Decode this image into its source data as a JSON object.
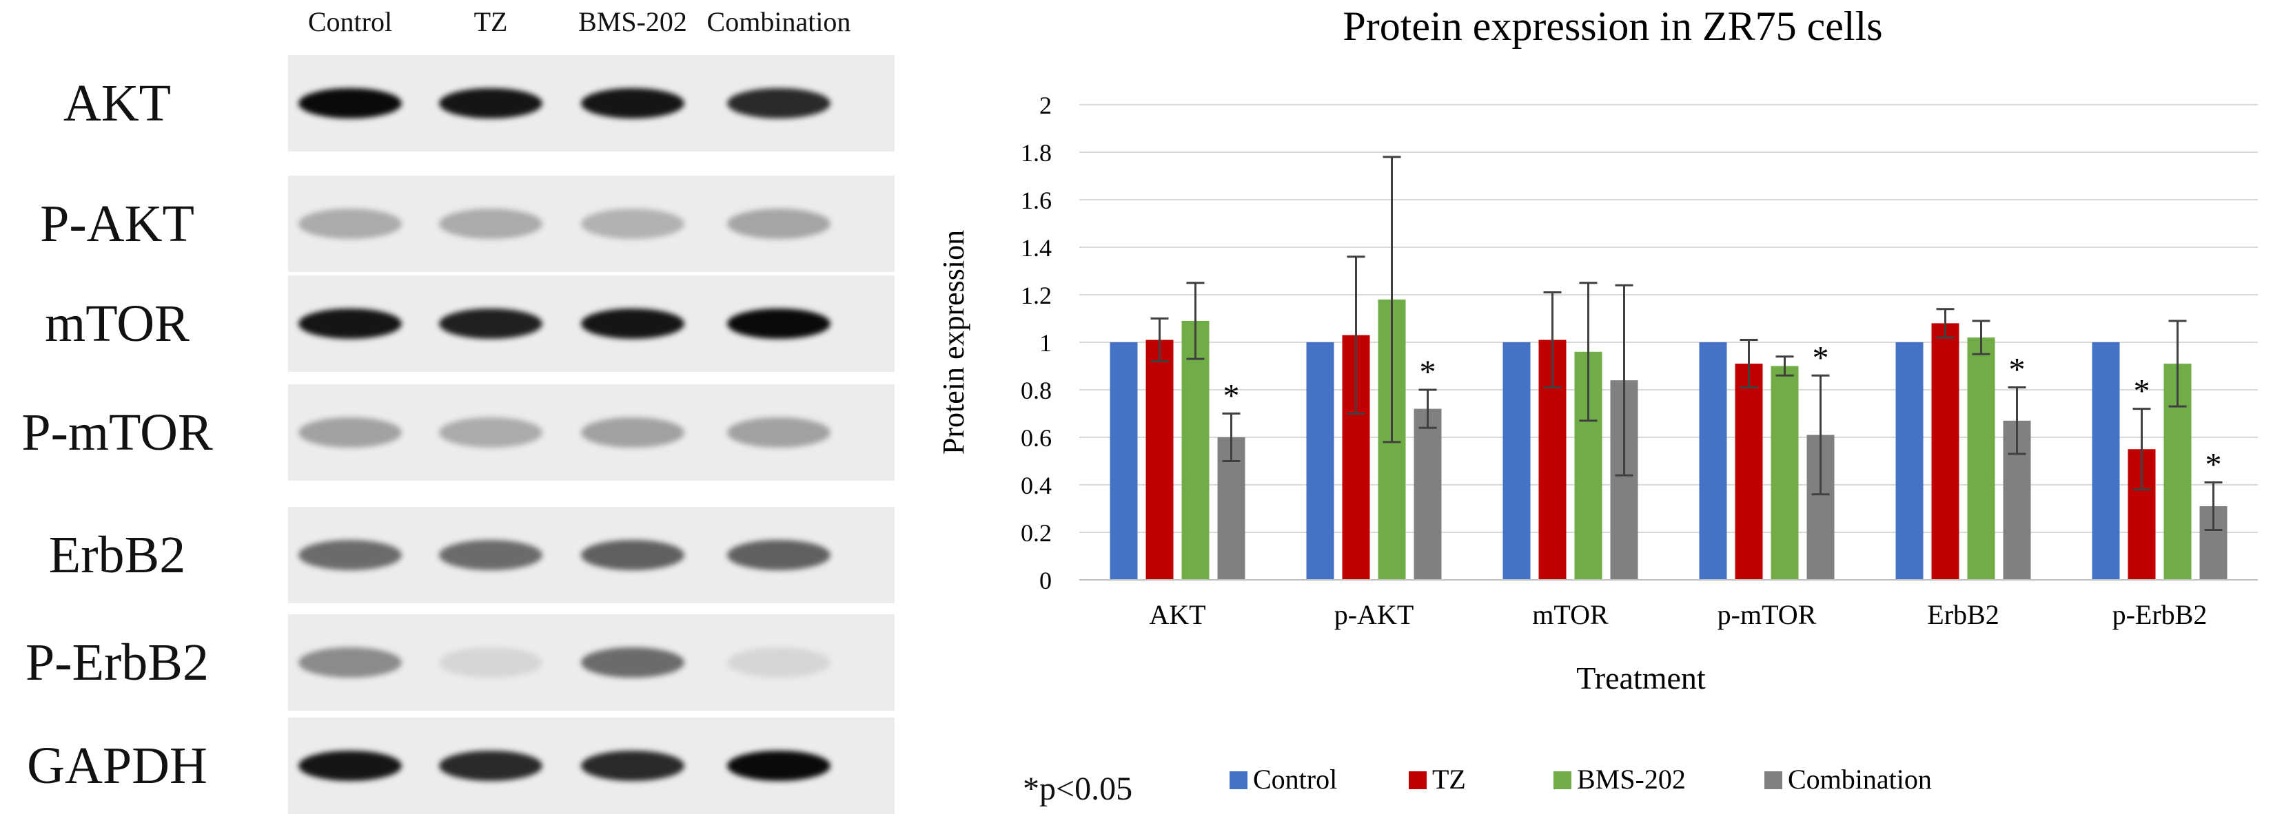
{
  "blot": {
    "lanes": [
      "Control",
      "TZ",
      "BMS-202",
      "Combination"
    ],
    "rows": [
      {
        "label": "AKT",
        "intensity": [
          1.0,
          0.95,
          0.95,
          0.85
        ]
      },
      {
        "label": "P-AKT",
        "intensity": [
          0.25,
          0.25,
          0.22,
          0.28
        ]
      },
      {
        "label": "mTOR",
        "intensity": [
          0.95,
          0.9,
          0.95,
          1.0
        ]
      },
      {
        "label": "P-mTOR",
        "intensity": [
          0.3,
          0.25,
          0.3,
          0.3
        ]
      },
      {
        "label": "ErbB2",
        "intensity": [
          0.55,
          0.55,
          0.6,
          0.6
        ]
      },
      {
        "label": "P-ErbB2",
        "intensity": [
          0.4,
          0.05,
          0.55,
          0.05
        ]
      },
      {
        "label": "GAPDH",
        "intensity": [
          0.95,
          0.85,
          0.85,
          1.0
        ]
      }
    ]
  },
  "chart_data": {
    "type": "bar",
    "title": "Protein expression in ZR75 cells",
    "xlabel": "Treatment",
    "ylabel": "Protein expression",
    "ylim": [
      0,
      2
    ],
    "yticks": [
      "0",
      "0.2",
      "0.4",
      "0.6",
      "0.8",
      "1",
      "1.2",
      "1.4",
      "1.6",
      "1.8",
      "2"
    ],
    "grid": true,
    "categories": [
      "AKT",
      "p-AKT",
      "mTOR",
      "p-mTOR",
      "ErbB2",
      "p-ErbB2"
    ],
    "series": [
      {
        "name": "Control",
        "color": "#4472C4",
        "values": [
          1,
          1,
          1,
          1,
          1,
          1
        ],
        "errors": [
          0,
          0,
          0,
          0,
          0,
          0
        ],
        "significant": [
          false,
          false,
          false,
          false,
          false,
          false
        ]
      },
      {
        "name": "TZ",
        "color": "#C00000",
        "values": [
          1.01,
          1.03,
          1.01,
          0.91,
          1.08,
          0.55
        ],
        "errors": [
          0.09,
          0.33,
          0.2,
          0.1,
          0.06,
          0.17
        ],
        "significant": [
          false,
          false,
          false,
          false,
          false,
          true
        ]
      },
      {
        "name": "BMS-202",
        "color": "#70AD47",
        "values": [
          1.09,
          1.18,
          0.96,
          0.9,
          1.02,
          0.91
        ],
        "errors": [
          0.16,
          0.6,
          0.29,
          0.04,
          0.07,
          0.18
        ],
        "significant": [
          false,
          false,
          false,
          false,
          false,
          false
        ]
      },
      {
        "name": "Combination",
        "color": "#808080",
        "values": [
          0.6,
          0.72,
          0.84,
          0.61,
          0.67,
          0.31
        ],
        "errors": [
          0.1,
          0.08,
          0.4,
          0.25,
          0.14,
          0.1
        ],
        "significant": [
          true,
          true,
          false,
          true,
          true,
          true
        ]
      }
    ],
    "significance_marker": "*",
    "footnote": "*p<0.05",
    "legend_position": "bottom"
  }
}
